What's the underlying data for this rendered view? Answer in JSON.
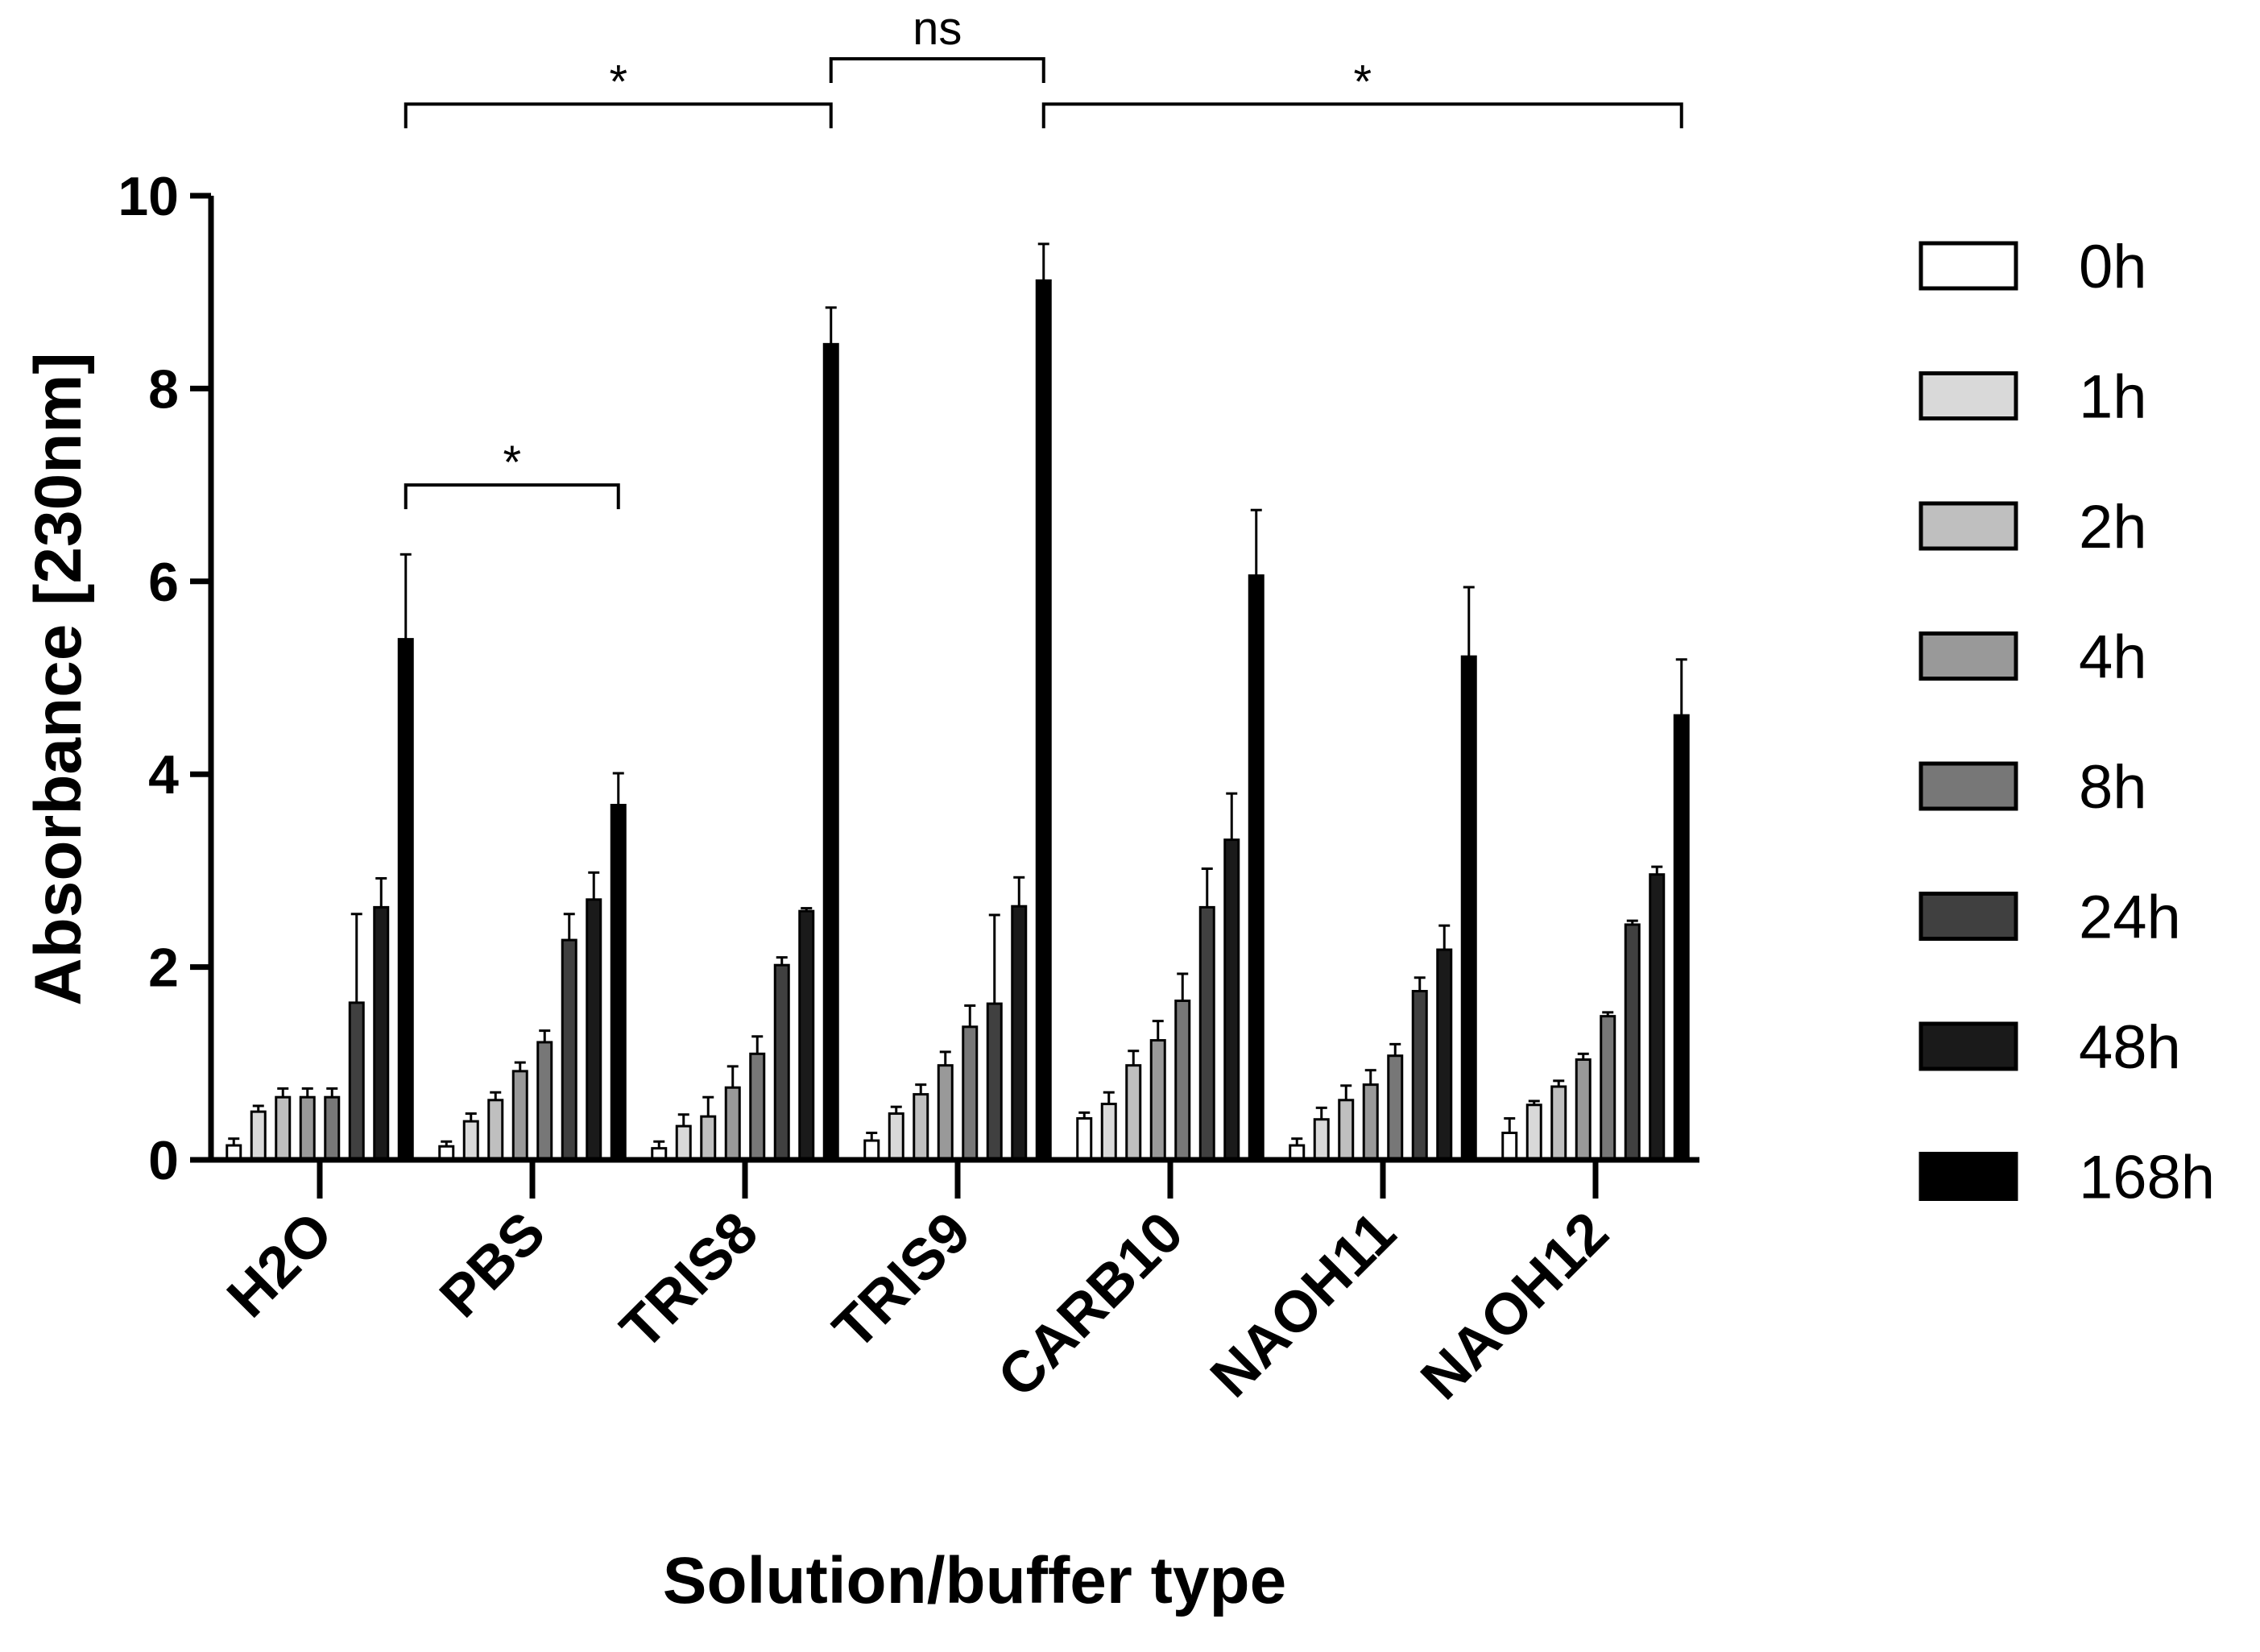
{
  "chart_data": {
    "type": "bar",
    "xlabel": "Solution/buffer type",
    "ylabel": "Absorbance [230nm]",
    "ylim": [
      0,
      10
    ],
    "yticks": [
      0,
      2,
      4,
      6,
      8,
      10
    ],
    "grid": false,
    "legend_position": "right",
    "categories": [
      "H2O",
      "PBS",
      "TRIS8",
      "TRIS9",
      "CARB10",
      "NAOH11",
      "NAOH12"
    ],
    "series": [
      {
        "name": "0h",
        "color": "#ffffff",
        "values": [
          0.15,
          0.14,
          0.12,
          0.2,
          0.43,
          0.15,
          0.28
        ],
        "errors": [
          0.07,
          0.05,
          0.07,
          0.08,
          0.06,
          0.07,
          0.15
        ]
      },
      {
        "name": "1h",
        "color": "#d9d9d9",
        "values": [
          0.5,
          0.4,
          0.35,
          0.48,
          0.58,
          0.42,
          0.57
        ],
        "errors": [
          0.06,
          0.08,
          0.12,
          0.07,
          0.12,
          0.12,
          0.04
        ]
      },
      {
        "name": "2h",
        "color": "#bfbfbf",
        "values": [
          0.65,
          0.62,
          0.45,
          0.68,
          0.98,
          0.62,
          0.76
        ],
        "errors": [
          0.09,
          0.08,
          0.2,
          0.1,
          0.15,
          0.15,
          0.06
        ]
      },
      {
        "name": "4h",
        "color": "#999999",
        "values": [
          0.65,
          0.92,
          0.75,
          0.98,
          1.24,
          0.78,
          1.04
        ],
        "errors": [
          0.09,
          0.09,
          0.22,
          0.14,
          0.2,
          0.15,
          0.06
        ]
      },
      {
        "name": "8h",
        "color": "#777777",
        "values": [
          0.65,
          1.22,
          1.1,
          1.38,
          1.65,
          1.08,
          1.49
        ],
        "errors": [
          0.09,
          0.12,
          0.18,
          0.22,
          0.28,
          0.12,
          0.04
        ]
      },
      {
        "name": "24h",
        "color": "#404040",
        "values": [
          1.63,
          2.28,
          2.02,
          1.62,
          2.62,
          1.75,
          2.44
        ],
        "errors": [
          0.92,
          0.27,
          0.08,
          0.92,
          0.4,
          0.14,
          0.04
        ]
      },
      {
        "name": "48h",
        "color": "#1a1a1a",
        "values": [
          2.62,
          2.7,
          2.58,
          2.63,
          3.32,
          2.18,
          2.96
        ],
        "errors": [
          0.3,
          0.28,
          0.03,
          0.3,
          0.48,
          0.25,
          0.08
        ]
      },
      {
        "name": "168h",
        "color": "#000000",
        "values": [
          5.4,
          3.68,
          8.46,
          9.12,
          6.06,
          5.22,
          4.61
        ],
        "errors": [
          0.88,
          0.33,
          0.38,
          0.38,
          0.68,
          0.72,
          0.58
        ]
      }
    ],
    "annotations": [
      {
        "label": "*",
        "from": "H2O",
        "to": "TRIS8",
        "level": 10.95
      },
      {
        "label": "ns",
        "from": "TRIS8",
        "to": "TRIS9",
        "level": 11.42
      },
      {
        "label": "*",
        "from": "TRIS9",
        "to": "NAOH12",
        "level": 10.95
      },
      {
        "label": "*",
        "from": "H2O",
        "to": "PBS",
        "level": 7.0
      }
    ]
  }
}
